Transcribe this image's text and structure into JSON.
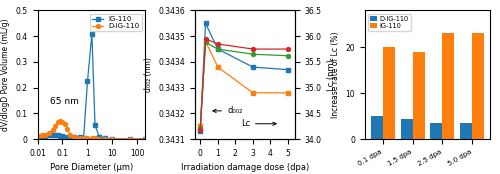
{
  "chart_data": [
    {
      "type": "line",
      "log": "x",
      "xlabel": "Pore Diameter (μm)",
      "ylabel": "dV/dlogD Pore Volume (mL/g)",
      "annotations": [
        "65 nm"
      ],
      "xlim": [
        0.01,
        200
      ],
      "xticks": [
        0.01,
        0.1,
        1,
        10,
        100
      ],
      "ylim": [
        0,
        0.5
      ],
      "yticks": [
        0,
        0.1,
        0.2,
        0.3,
        0.4,
        0.5
      ],
      "legend": "upper right",
      "series": [
        {
          "name": "IG-110",
          "marker": "square",
          "line_style": "solid",
          "x": [
            0.01,
            0.015,
            0.02,
            0.03,
            0.04,
            0.05,
            0.065,
            0.08,
            0.1,
            0.15,
            0.2,
            0.3,
            0.5,
            0.7,
            1.0,
            1.5,
            2.0,
            3.0,
            5.0,
            10.0,
            50.0,
            200.0
          ],
          "values": [
            0.01,
            0.012,
            0.013,
            0.015,
            0.016,
            0.016,
            0.015,
            0.013,
            0.012,
            0.01,
            0.009,
            0.008,
            0.007,
            0.006,
            0.225,
            0.41,
            0.055,
            0.008,
            0.004,
            0.002,
            0.001,
            0.001
          ]
        },
        {
          "name": "D-IG-110",
          "marker": "circle",
          "line_style": "solid",
          "x": [
            0.01,
            0.015,
            0.02,
            0.03,
            0.04,
            0.05,
            0.065,
            0.08,
            0.1,
            0.13,
            0.15,
            0.2,
            0.3,
            0.5,
            0.7,
            1.0,
            1.5,
            2.0,
            3.0,
            5.0,
            10.0,
            50.0,
            200.0
          ],
          "values": [
            0.012,
            0.015,
            0.018,
            0.025,
            0.035,
            0.05,
            0.065,
            0.072,
            0.068,
            0.058,
            0.04,
            0.018,
            0.008,
            0.005,
            0.004,
            0.004,
            0.003,
            0.003,
            0.002,
            0.002,
            0.001,
            0.001,
            0.001
          ]
        }
      ]
    },
    {
      "type": "line",
      "xlabel": "Irradiation damage dose (dpa)",
      "ylabel": "d₀₀₂ (nm)",
      "y2label": "Lc (nm)",
      "annotations": [
        "d₀₀₂",
        "Lc"
      ],
      "x": [
        0,
        0.3,
        1,
        3,
        5
      ],
      "xlim": [
        -0.3,
        5.4
      ],
      "xticks": [
        0,
        1,
        2,
        3,
        4,
        5
      ],
      "ylim": [
        0.3431,
        0.3436
      ],
      "yticks": [
        0.3431,
        0.3432,
        0.3433,
        0.3434,
        0.3435,
        0.3436
      ],
      "y2lim": [
        34.0,
        36.5
      ],
      "y2ticks": [
        34.0,
        34.5,
        35.0,
        35.5,
        36.0,
        36.5
      ],
      "series": [
        {
          "values": [
            0.34313,
            0.34355,
            0.34345,
            0.34338,
            0.34337
          ],
          "marker": "square",
          "line_style": "solid"
        },
        {
          "values": [
            0.34315,
            0.34348,
            0.34338,
            0.34328,
            0.34328
          ],
          "marker": "square",
          "line_style": "solid"
        },
        {
          "values": [
            34.22,
            35.88,
            35.75,
            35.65,
            35.62
          ],
          "axis": "y2",
          "marker": "circle",
          "line_style": "solid"
        },
        {
          "values": [
            34.18,
            35.95,
            35.85,
            35.75,
            35.75
          ],
          "axis": "y2",
          "marker": "circle",
          "line_style": "solid"
        }
      ]
    },
    {
      "type": "bar",
      "categories": [
        "0.1 dpa",
        "1.5 dpa",
        "2.5 dpa",
        "5.0 dpa"
      ],
      "ylabel": "Increase rate of Lc (%)",
      "ylim": [
        0,
        28
      ],
      "yticks": [
        0,
        10,
        20
      ],
      "legend": "upper left",
      "series": [
        {
          "name": "D-IG-110",
          "values": [
            5,
            4.5,
            3.5,
            3.5
          ]
        },
        {
          "name": "IG-110",
          "values": [
            20,
            19,
            23,
            23
          ]
        }
      ]
    }
  ]
}
